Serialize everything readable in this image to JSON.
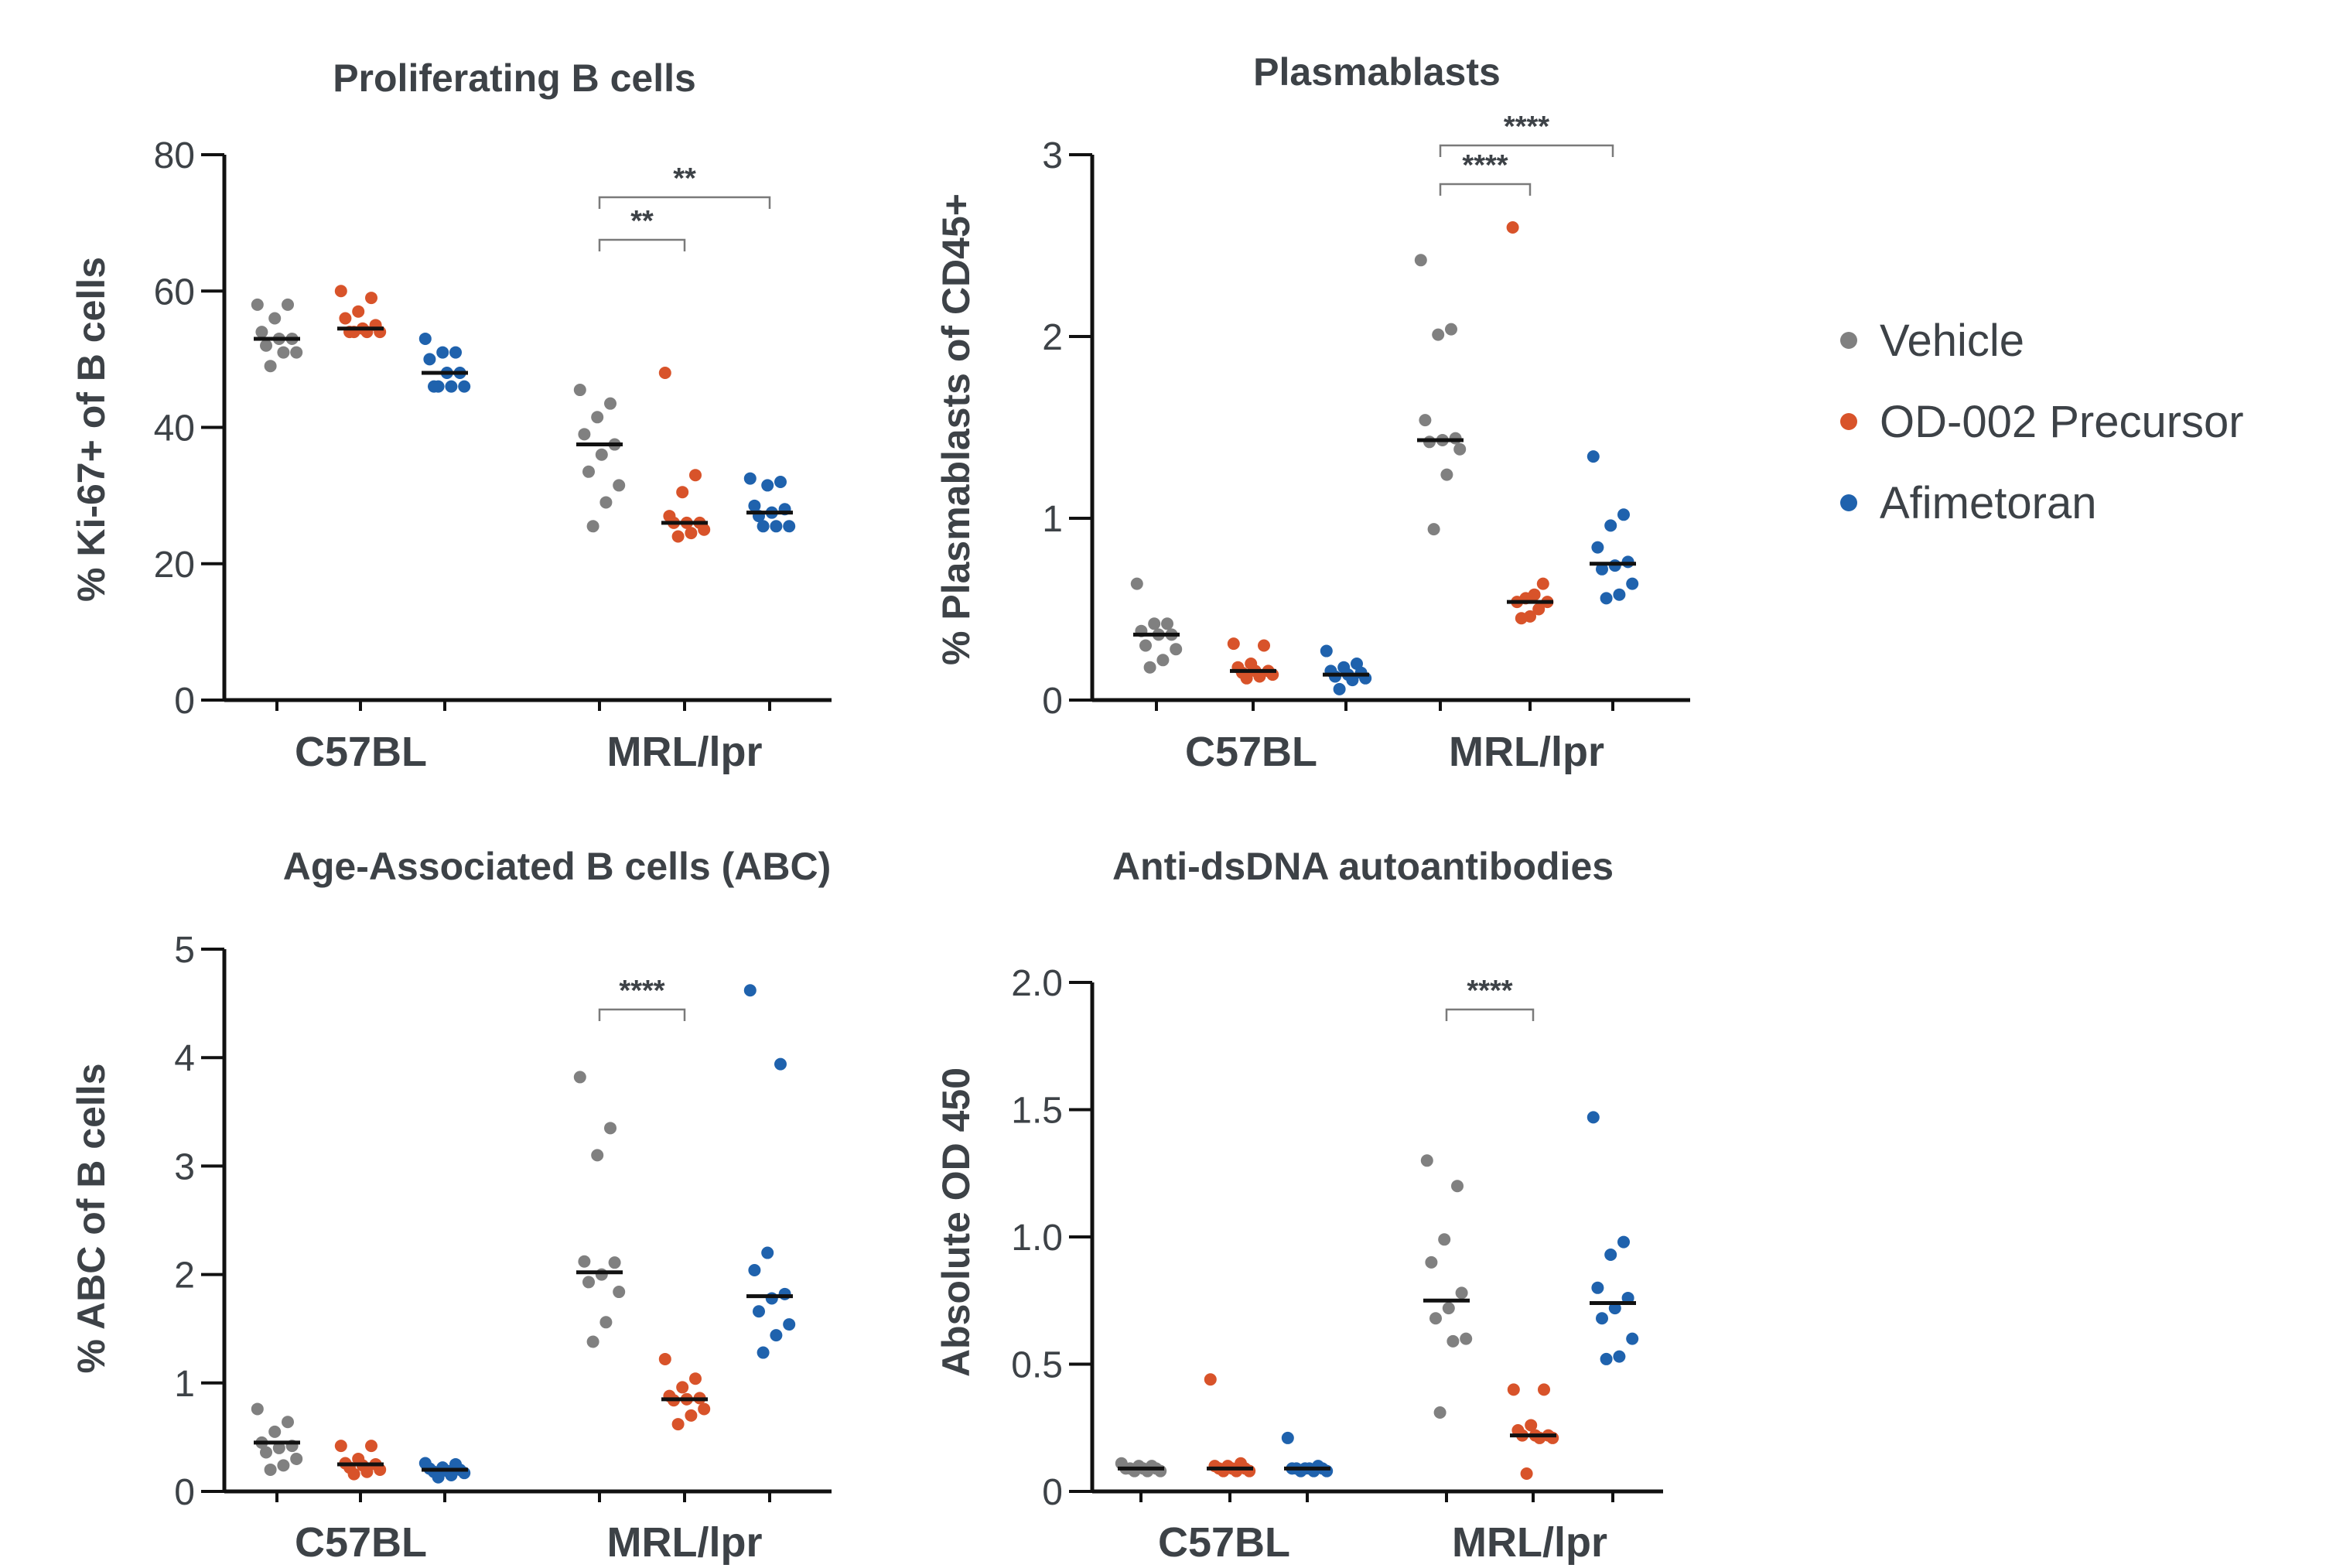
{
  "chart_data": [
    {
      "type": "scatter",
      "title": "Proliferating B cells",
      "ylabel": "% Ki-67+ of B cells",
      "ylim": [
        0,
        80
      ],
      "yticks": [
        "0",
        "20",
        "40",
        "60",
        "80"
      ],
      "groups": [
        "C57BL",
        "MRL/lpr"
      ],
      "series": [
        {
          "name": "Vehicle",
          "group": "C57BL",
          "median": 53,
          "values": [
            58,
            58,
            56,
            54,
            53,
            53,
            52,
            51,
            51,
            49
          ]
        },
        {
          "name": "OD-002 Precursor",
          "group": "C57BL",
          "median": 54.5,
          "values": [
            60,
            59,
            57,
            56,
            55,
            54.5,
            54,
            54,
            54,
            54
          ]
        },
        {
          "name": "Afimetoran",
          "group": "C57BL",
          "median": 48,
          "values": [
            53,
            51,
            51,
            50,
            48,
            48,
            46,
            46,
            46,
            46
          ]
        },
        {
          "name": "Vehicle",
          "group": "MRL/lpr",
          "median": 37.5,
          "values": [
            45.5,
            43.5,
            41.5,
            39,
            37.5,
            36,
            33.5,
            31.5,
            29,
            25.5
          ]
        },
        {
          "name": "OD-002 Precursor",
          "group": "MRL/lpr",
          "median": 26,
          "values": [
            48,
            33,
            30.5,
            27,
            26,
            26,
            26,
            25,
            24.5,
            24
          ]
        },
        {
          "name": "Afimetoran",
          "group": "MRL/lpr",
          "median": 27.5,
          "values": [
            32.5,
            32,
            31.5,
            28.5,
            28,
            27.5,
            27,
            25.5,
            25.5,
            25.5
          ]
        }
      ],
      "significance": [
        {
          "label": "**",
          "from": "Vehicle",
          "to": "OD-002 Precursor",
          "group": "MRL/lpr"
        },
        {
          "label": "**",
          "from": "Vehicle",
          "to": "Afimetoran",
          "group": "MRL/lpr"
        }
      ]
    },
    {
      "type": "scatter",
      "title": "Plasmablasts",
      "ylabel": "% Plasmablasts of CD45+",
      "ylim": [
        0,
        3
      ],
      "yticks": [
        "0",
        "1",
        "2",
        "3"
      ],
      "groups": [
        "C57BL",
        "MRL/lpr"
      ],
      "series": [
        {
          "name": "Vehicle",
          "group": "C57BL",
          "median": 0.36,
          "values": [
            0.64,
            0.42,
            0.42,
            0.38,
            0.36,
            0.36,
            0.3,
            0.28,
            0.22,
            0.18
          ]
        },
        {
          "name": "OD-002 Precursor",
          "group": "C57BL",
          "median": 0.16,
          "values": [
            0.31,
            0.3,
            0.2,
            0.18,
            0.16,
            0.16,
            0.15,
            0.14,
            0.13,
            0.12
          ]
        },
        {
          "name": "Afimetoran",
          "group": "C57BL",
          "median": 0.14,
          "values": [
            0.27,
            0.2,
            0.18,
            0.16,
            0.15,
            0.14,
            0.13,
            0.12,
            0.11,
            0.06
          ]
        },
        {
          "name": "Vehicle",
          "group": "MRL/lpr",
          "median": 1.43,
          "values": [
            2.42,
            2.04,
            2.01,
            1.54,
            1.44,
            1.43,
            1.42,
            1.38,
            1.24,
            0.94
          ]
        },
        {
          "name": "OD-002 Precursor",
          "group": "MRL/lpr",
          "median": 0.54,
          "values": [
            2.6,
            0.64,
            0.58,
            0.56,
            0.54,
            0.54,
            0.5,
            0.46,
            0.45
          ]
        },
        {
          "name": "Afimetoran",
          "group": "MRL/lpr",
          "median": 0.75,
          "values": [
            1.34,
            1.02,
            0.96,
            0.84,
            0.76,
            0.74,
            0.72,
            0.64,
            0.58,
            0.56
          ]
        }
      ],
      "significance": [
        {
          "label": "****",
          "from": "Vehicle",
          "to": "OD-002 Precursor",
          "group": "MRL/lpr"
        },
        {
          "label": "****",
          "from": "Vehicle",
          "to": "Afimetoran",
          "group": "MRL/lpr"
        }
      ]
    },
    {
      "type": "scatter",
      "title": "Age-Associated B cells (ABC)",
      "ylabel": "% ABC of B cells",
      "ylim": [
        0,
        5
      ],
      "yticks": [
        "0",
        "1",
        "2",
        "3",
        "4",
        "5"
      ],
      "groups": [
        "C57BL",
        "MRL/lpr"
      ],
      "series": [
        {
          "name": "Vehicle",
          "group": "C57BL",
          "median": 0.45,
          "values": [
            0.76,
            0.64,
            0.55,
            0.45,
            0.42,
            0.4,
            0.36,
            0.3,
            0.24,
            0.2
          ]
        },
        {
          "name": "OD-002 Precursor",
          "group": "C57BL",
          "median": 0.25,
          "values": [
            0.42,
            0.42,
            0.3,
            0.26,
            0.25,
            0.24,
            0.22,
            0.2,
            0.18,
            0.16
          ]
        },
        {
          "name": "Afimetoran",
          "group": "C57BL",
          "median": 0.2,
          "values": [
            0.26,
            0.25,
            0.22,
            0.21,
            0.2,
            0.19,
            0.18,
            0.17,
            0.15,
            0.13
          ]
        },
        {
          "name": "Vehicle",
          "group": "MRL/lpr",
          "median": 2.02,
          "values": [
            3.82,
            3.35,
            3.1,
            2.12,
            2.11,
            2.0,
            1.93,
            1.84,
            1.56,
            1.38
          ]
        },
        {
          "name": "OD-002 Precursor",
          "group": "MRL/lpr",
          "median": 0.85,
          "values": [
            1.22,
            1.04,
            0.96,
            0.88,
            0.86,
            0.85,
            0.84,
            0.76,
            0.7,
            0.62
          ]
        },
        {
          "name": "Afimetoran",
          "group": "MRL/lpr",
          "median": 1.8,
          "values": [
            4.62,
            3.94,
            2.2,
            2.04,
            1.82,
            1.78,
            1.66,
            1.54,
            1.44,
            1.28
          ]
        }
      ],
      "significance": [
        {
          "label": "****",
          "from": "Vehicle",
          "to": "OD-002 Precursor",
          "group": "MRL/lpr"
        }
      ]
    },
    {
      "type": "scatter",
      "title": "Anti-dsDNA autoantibodies",
      "ylabel": "Absolute OD 450",
      "ylim": [
        0,
        2.0
      ],
      "yticks": [
        "0",
        "0.5",
        "1.0",
        "1.5",
        "2.0"
      ],
      "groups": [
        "C57BL",
        "MRL/lpr"
      ],
      "series": [
        {
          "name": "Vehicle",
          "group": "C57BL",
          "median": 0.09,
          "values": [
            0.11,
            0.1,
            0.1,
            0.09,
            0.09,
            0.09,
            0.09,
            0.08,
            0.08,
            0.08
          ]
        },
        {
          "name": "OD-002 Precursor",
          "group": "C57BL",
          "median": 0.09,
          "values": [
            0.44,
            0.11,
            0.1,
            0.1,
            0.09,
            0.09,
            0.09,
            0.08,
            0.08,
            0.08
          ]
        },
        {
          "name": "Afimetoran",
          "group": "C57BL",
          "median": 0.09,
          "values": [
            0.21,
            0.1,
            0.09,
            0.09,
            0.09,
            0.09,
            0.09,
            0.08,
            0.08,
            0.08
          ]
        },
        {
          "name": "Vehicle",
          "group": "MRL/lpr",
          "median": 0.75,
          "values": [
            1.3,
            1.2,
            0.99,
            0.9,
            0.78,
            0.72,
            0.68,
            0.6,
            0.59,
            0.31
          ]
        },
        {
          "name": "OD-002 Precursor",
          "group": "MRL/lpr",
          "median": 0.22,
          "values": [
            0.4,
            0.4,
            0.26,
            0.24,
            0.22,
            0.22,
            0.22,
            0.21,
            0.21,
            0.07
          ]
        },
        {
          "name": "Afimetoran",
          "group": "MRL/lpr",
          "median": 0.74,
          "values": [
            1.47,
            0.98,
            0.93,
            0.8,
            0.76,
            0.72,
            0.68,
            0.6,
            0.53,
            0.52
          ]
        }
      ],
      "significance": [
        {
          "label": "****",
          "from": "Vehicle",
          "to": "OD-002 Precursor",
          "group": "MRL/lpr"
        }
      ]
    }
  ],
  "legend": [
    {
      "label": "Vehicle",
      "color": "#808080"
    },
    {
      "label": "OD-002 Precursor",
      "color": "#d8532a"
    },
    {
      "label": "Afimetoran",
      "color": "#1f62ad"
    }
  ]
}
